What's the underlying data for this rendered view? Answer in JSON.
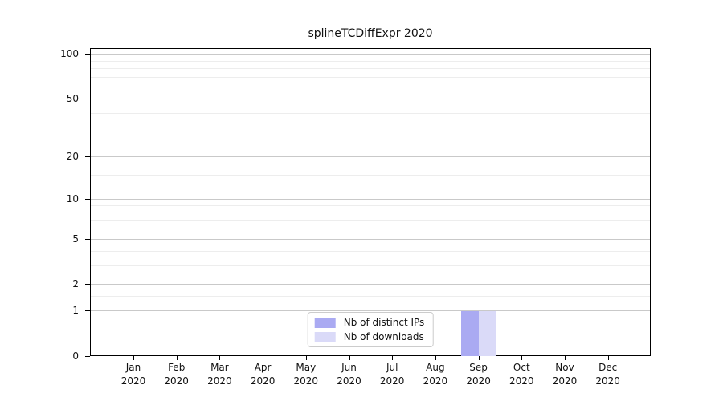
{
  "title": "splineTCDiffExpr 2020",
  "legend": {
    "items": [
      {
        "label": "Nb of distinct IPs",
        "color": "#aaaaf2"
      },
      {
        "label": "Nb of downloads",
        "color": "#dadaf8"
      }
    ]
  },
  "chart_data": {
    "type": "bar",
    "title": "splineTCDiffExpr 2020",
    "x_axis": {
      "months": [
        "Jan",
        "Feb",
        "Mar",
        "Apr",
        "May",
        "Jun",
        "Jul",
        "Aug",
        "Sep",
        "Oct",
        "Nov",
        "Dec"
      ],
      "year": "2020"
    },
    "y_axis": {
      "ticks": [
        0,
        1,
        2,
        5,
        10,
        20,
        50,
        100
      ],
      "minor_gridlines": [
        1.5,
        3,
        4,
        6,
        7,
        8,
        9,
        15,
        30,
        40,
        60,
        70,
        80,
        90
      ],
      "scale": "log1p",
      "top_value": 109
    },
    "series": [
      {
        "name": "Nb of distinct IPs",
        "color": "#aaaaf2",
        "values": [
          0,
          0,
          0,
          0,
          0,
          0,
          0,
          0,
          1,
          0,
          0,
          0
        ]
      },
      {
        "name": "Nb of downloads",
        "color": "#dadaf8",
        "values": [
          0,
          0,
          0,
          0,
          0,
          0,
          0,
          0,
          1,
          0,
          0,
          0
        ]
      }
    ],
    "grid": {
      "major_color": "#c9c9c9",
      "minor_color": "#ededed"
    },
    "legend_position": "lower center"
  }
}
